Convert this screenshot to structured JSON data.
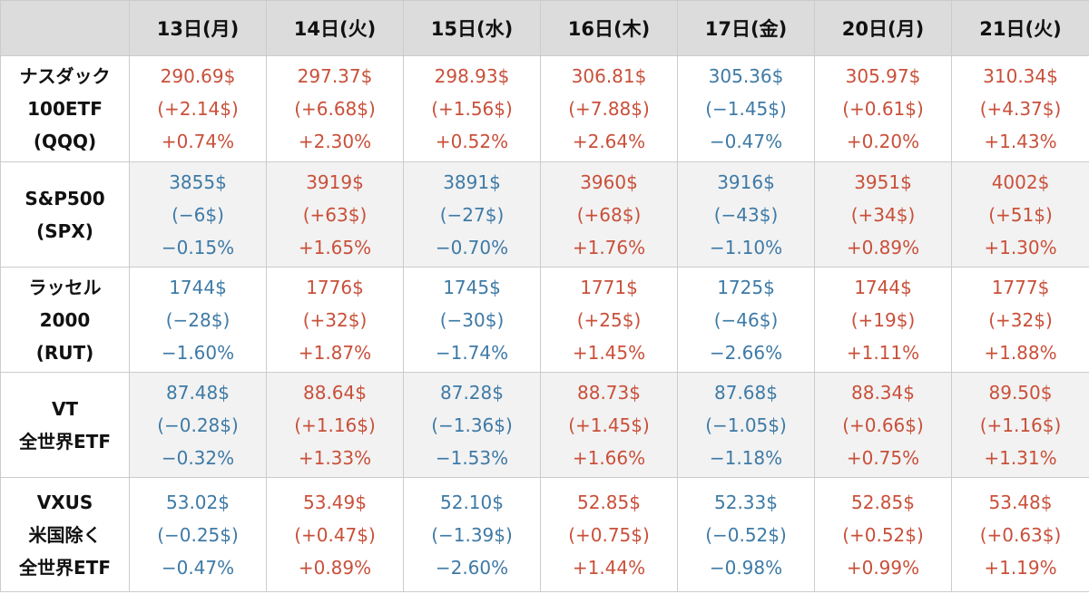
{
  "colors": {
    "up": "#c9503a",
    "down": "#3e7aa6",
    "header_bg": "#dcdcdc",
    "alt_row_bg": "#f2f2f2"
  },
  "header": {
    "corner": "",
    "days": [
      "13日(月)",
      "14日(火)",
      "15日(水)",
      "16日(木)",
      "17日(金)",
      "20日(月)",
      "21日(火)"
    ]
  },
  "rows": [
    {
      "label": [
        "ナスダック",
        "100ETF",
        "(QQQ)"
      ],
      "cells": [
        {
          "price": "290.69$",
          "change": "(+2.14$)",
          "pct": "+0.74%",
          "dir": "up"
        },
        {
          "price": "297.37$",
          "change": "(+6.68$)",
          "pct": "+2.30%",
          "dir": "up"
        },
        {
          "price": "298.93$",
          "change": "(+1.56$)",
          "pct": "+0.52%",
          "dir": "up"
        },
        {
          "price": "306.81$",
          "change": "(+7.88$)",
          "pct": "+2.64%",
          "dir": "up"
        },
        {
          "price": "305.36$",
          "change": "(−1.45$)",
          "pct": "−0.47%",
          "dir": "down"
        },
        {
          "price": "305.97$",
          "change": "(+0.61$)",
          "pct": "+0.20%",
          "dir": "up"
        },
        {
          "price": "310.34$",
          "change": "(+4.37$)",
          "pct": "+1.43%",
          "dir": "up"
        }
      ]
    },
    {
      "label": [
        "S&P500",
        "(SPX)"
      ],
      "cells": [
        {
          "price": "3855$",
          "change": "(−6$)",
          "pct": "−0.15%",
          "dir": "down"
        },
        {
          "price": "3919$",
          "change": "(+63$)",
          "pct": "+1.65%",
          "dir": "up"
        },
        {
          "price": "3891$",
          "change": "(−27$)",
          "pct": "−0.70%",
          "dir": "down"
        },
        {
          "price": "3960$",
          "change": "(+68$)",
          "pct": "+1.76%",
          "dir": "up"
        },
        {
          "price": "3916$",
          "change": "(−43$)",
          "pct": "−1.10%",
          "dir": "down"
        },
        {
          "price": "3951$",
          "change": "(+34$)",
          "pct": "+0.89%",
          "dir": "up"
        },
        {
          "price": "4002$",
          "change": "(+51$)",
          "pct": "+1.30%",
          "dir": "up"
        }
      ]
    },
    {
      "label": [
        "ラッセル",
        "2000",
        "(RUT)"
      ],
      "cells": [
        {
          "price": "1744$",
          "change": "(−28$)",
          "pct": "−1.60%",
          "dir": "down"
        },
        {
          "price": "1776$",
          "change": "(+32$)",
          "pct": "+1.87%",
          "dir": "up"
        },
        {
          "price": "1745$",
          "change": "(−30$)",
          "pct": "−1.74%",
          "dir": "down"
        },
        {
          "price": "1771$",
          "change": "(+25$)",
          "pct": "+1.45%",
          "dir": "up"
        },
        {
          "price": "1725$",
          "change": "(−46$)",
          "pct": "−2.66%",
          "dir": "down"
        },
        {
          "price": "1744$",
          "change": "(+19$)",
          "pct": "+1.11%",
          "dir": "up"
        },
        {
          "price": "1777$",
          "change": "(+32$)",
          "pct": "+1.88%",
          "dir": "up"
        }
      ]
    },
    {
      "label": [
        "VT",
        "全世界ETF"
      ],
      "cells": [
        {
          "price": "87.48$",
          "change": "(−0.28$)",
          "pct": "−0.32%",
          "dir": "down"
        },
        {
          "price": "88.64$",
          "change": "(+1.16$)",
          "pct": "+1.33%",
          "dir": "up"
        },
        {
          "price": "87.28$",
          "change": "(−1.36$)",
          "pct": "−1.53%",
          "dir": "down"
        },
        {
          "price": "88.73$",
          "change": "(+1.45$)",
          "pct": "+1.66%",
          "dir": "up"
        },
        {
          "price": "87.68$",
          "change": "(−1.05$)",
          "pct": "−1.18%",
          "dir": "down"
        },
        {
          "price": "88.34$",
          "change": "(+0.66$)",
          "pct": "+0.75%",
          "dir": "up"
        },
        {
          "price": "89.50$",
          "change": "(+1.16$)",
          "pct": "+1.31%",
          "dir": "up"
        }
      ]
    },
    {
      "label": [
        "VXUS",
        "米国除く",
        "全世界ETF"
      ],
      "cells": [
        {
          "price": "53.02$",
          "change": "(−0.25$)",
          "pct": "−0.47%",
          "dir": "down"
        },
        {
          "price": "53.49$",
          "change": "(+0.47$)",
          "pct": "+0.89%",
          "dir": "up"
        },
        {
          "price": "52.10$",
          "change": "(−1.39$)",
          "pct": "−2.60%",
          "dir": "down"
        },
        {
          "price": "52.85$",
          "change": "(+0.75$)",
          "pct": "+1.44%",
          "dir": "up"
        },
        {
          "price": "52.33$",
          "change": "(−0.52$)",
          "pct": "−0.98%",
          "dir": "down"
        },
        {
          "price": "52.85$",
          "change": "(+0.52$)",
          "pct": "+0.99%",
          "dir": "up"
        },
        {
          "price": "53.48$",
          "change": "(+0.63$)",
          "pct": "+1.19%",
          "dir": "up"
        }
      ]
    }
  ]
}
